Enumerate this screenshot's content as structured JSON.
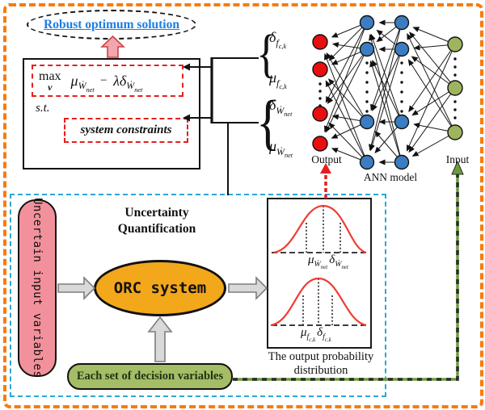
{
  "title_bubble": {
    "text": "Robust optimum solution"
  },
  "objective": {
    "max": "max",
    "v": "v",
    "st": "s.t.",
    "constraints": "system constraints"
  },
  "sym": {
    "mu": "μ",
    "delta": "δ",
    "lambda": "λ",
    "minus": "−",
    "w": "Ẇ",
    "net": "net",
    "f": "f",
    "ck": "c,k",
    "brace": "{"
  },
  "ann": {
    "output": "Output",
    "model": "ANN model",
    "input": "Input"
  },
  "uq": {
    "title1": "Uncertainty",
    "title2": "Quantification",
    "input_box": "Uncertain input variables",
    "orc": "ORC system",
    "decision_box": "Each set of decision variables",
    "caption1": "The output probability",
    "caption2": "distribution"
  },
  "colors": {
    "outer-border": "#f97b0d",
    "uq-border": "#2aa7d9",
    "title-text": "#1c7ee3",
    "red-dash": "#e51f1f",
    "pink-fill": "#f2919c",
    "pink-arrow": "#f2a6ad",
    "orange-fill": "#f3a71b",
    "green-fill": "#a4bd66",
    "node-red": "#e90f0f",
    "node-blue": "#3c7dc2",
    "node-green": "#9fb45f",
    "green-arrow": "#6d9c3d"
  }
}
